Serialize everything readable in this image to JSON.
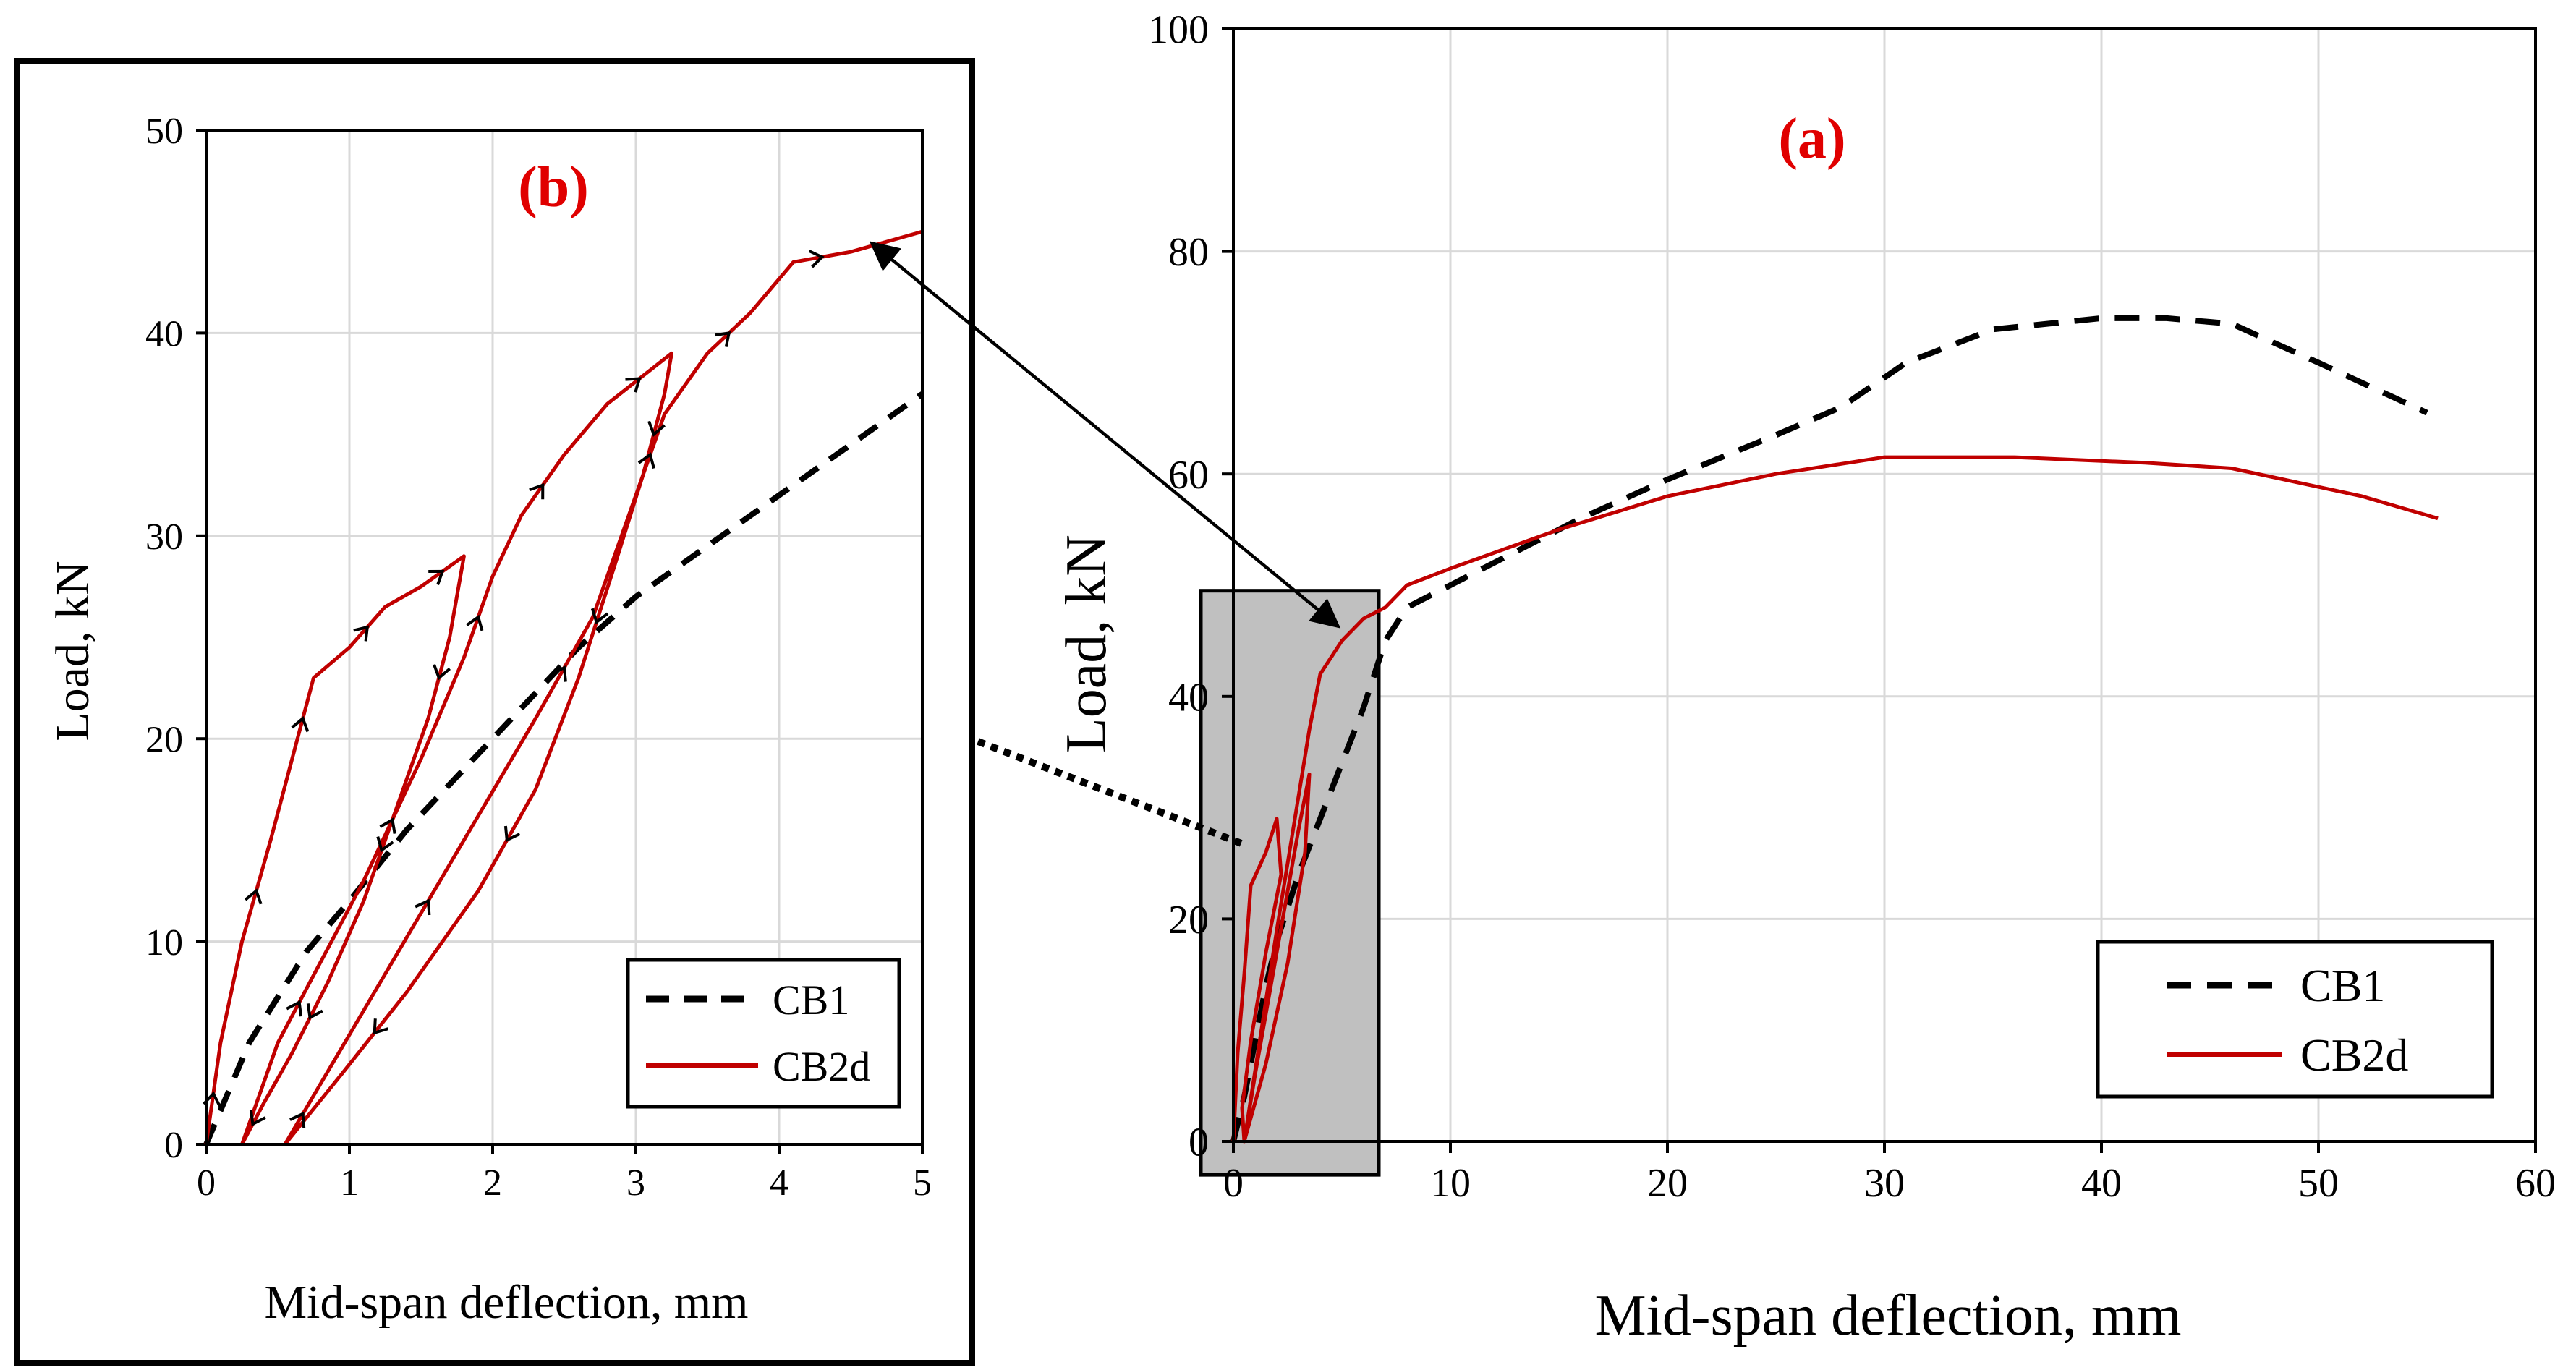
{
  "chart_data": [
    {
      "id": "a",
      "type": "line",
      "panel_label": "(a)",
      "title": "",
      "xlabel": "Mid-span deflection, mm",
      "ylabel": "Load,  kN",
      "xlim": [
        0,
        60
      ],
      "ylim": [
        0,
        100
      ],
      "xticks": [
        0,
        10,
        20,
        30,
        40,
        50,
        60
      ],
      "yticks": [
        0,
        20,
        40,
        60,
        80,
        100
      ],
      "grid": true,
      "legend_position": "bottom-right",
      "highlight_box": {
        "x": [
          -1.5,
          6.7
        ],
        "y": [
          -3,
          49.5
        ]
      },
      "series": [
        {
          "name": "CB1",
          "style": "dashed",
          "color": "#000000",
          "points": [
            [
              0,
              0
            ],
            [
              0.5,
              4
            ],
            [
              1,
              9
            ],
            [
              1.5,
              14
            ],
            [
              2,
              18
            ],
            [
              3,
              24
            ],
            [
              4,
              29
            ],
            [
              5,
              34
            ],
            [
              6,
              39
            ],
            [
              7,
              45
            ],
            [
              8,
              48
            ],
            [
              12,
              52
            ],
            [
              16,
              56
            ],
            [
              20,
              59.5
            ],
            [
              25,
              63.5
            ],
            [
              28,
              66
            ],
            [
              31,
              70
            ],
            [
              35,
              73
            ],
            [
              40,
              74
            ],
            [
              43,
              74
            ],
            [
              46,
              73.5
            ],
            [
              50,
              70
            ],
            [
              55,
              65.5
            ]
          ]
        },
        {
          "name": "CB2d",
          "style": "solid",
          "color": "#c00000",
          "points": [
            [
              0,
              0
            ],
            [
              0.2,
              8
            ],
            [
              0.5,
              15
            ],
            [
              0.8,
              23
            ],
            [
              1.5,
              26
            ],
            [
              2,
              29
            ],
            [
              2.2,
              24
            ],
            [
              1.5,
              17
            ],
            [
              0.8,
              9
            ],
            [
              0.4,
              3
            ],
            [
              0.5,
              0
            ],
            [
              1,
              6
            ],
            [
              2,
              17
            ],
            [
              3,
              28
            ],
            [
              3.5,
              33
            ],
            [
              3.3,
              26
            ],
            [
              2.5,
              16
            ],
            [
              1.5,
              7
            ],
            [
              0.5,
              0
            ],
            [
              2,
              19
            ],
            [
              3.5,
              37
            ],
            [
              4,
              42
            ],
            [
              5,
              45
            ],
            [
              6,
              47
            ],
            [
              7,
              48
            ],
            [
              8,
              50
            ],
            [
              10,
              51.5
            ],
            [
              15,
              55
            ],
            [
              20,
              58
            ],
            [
              25,
              60
            ],
            [
              30,
              61.5
            ],
            [
              36,
              61.5
            ],
            [
              42,
              61
            ],
            [
              46,
              60.5
            ],
            [
              52,
              58
            ],
            [
              55.5,
              56
            ]
          ]
        }
      ]
    },
    {
      "id": "b",
      "type": "line",
      "panel_label": "(b)",
      "title": "",
      "xlabel": "Mid-span deflection, mm",
      "ylabel": "Load,  kN",
      "xlim": [
        0,
        5
      ],
      "ylim": [
        0,
        50
      ],
      "xticks": [
        0,
        1,
        2,
        3,
        4,
        5
      ],
      "yticks": [
        0,
        10,
        20,
        30,
        40,
        50
      ],
      "grid": true,
      "legend_position": "bottom-right",
      "series": [
        {
          "name": "CB1",
          "style": "dashed",
          "color": "#000000",
          "points": [
            [
              0,
              0
            ],
            [
              0.3,
              5
            ],
            [
              0.7,
              9.5
            ],
            [
              1,
              12
            ],
            [
              1.4,
              15.5
            ],
            [
              1.8,
              18.5
            ],
            [
              2.2,
              21.5
            ],
            [
              2.6,
              24.5
            ],
            [
              3,
              27
            ],
            [
              3.6,
              30
            ],
            [
              4,
              32
            ],
            [
              4.5,
              34.5
            ],
            [
              5,
              37
            ]
          ]
        },
        {
          "name": "CB2d",
          "style": "solid",
          "color": "#c00000",
          "points": [
            [
              0,
              0
            ],
            [
              0.1,
              5
            ],
            [
              0.25,
              10
            ],
            [
              0.45,
              15
            ],
            [
              0.6,
              19
            ],
            [
              0.75,
              23
            ],
            [
              1,
              24.5
            ],
            [
              1.25,
              26.5
            ],
            [
              1.5,
              27.5
            ],
            [
              1.8,
              29
            ],
            [
              1.7,
              25
            ],
            [
              1.55,
              21
            ],
            [
              1.35,
              17
            ],
            [
              1.1,
              12
            ],
            [
              0.85,
              8
            ],
            [
              0.6,
              4.5
            ],
            [
              0.4,
              2
            ],
            [
              0.25,
              0
            ],
            [
              0.5,
              5
            ],
            [
              0.8,
              9
            ],
            [
              1.1,
              13
            ],
            [
              1.5,
              19
            ],
            [
              1.8,
              24
            ],
            [
              2,
              28
            ],
            [
              2.2,
              31
            ],
            [
              2.5,
              34
            ],
            [
              2.8,
              36.5
            ],
            [
              3.25,
              39
            ],
            [
              3.2,
              37
            ],
            [
              3.05,
              33
            ],
            [
              2.85,
              28.5
            ],
            [
              2.6,
              23
            ],
            [
              2.3,
              17.5
            ],
            [
              1.9,
              12.5
            ],
            [
              1.4,
              7.5
            ],
            [
              0.95,
              3.5
            ],
            [
              0.55,
              0
            ],
            [
              0.8,
              3
            ],
            [
              1.3,
              9
            ],
            [
              1.8,
              15
            ],
            [
              2.3,
              21
            ],
            [
              2.7,
              26
            ],
            [
              3,
              32
            ],
            [
              3.2,
              36
            ],
            [
              3.5,
              39
            ],
            [
              3.8,
              41
            ],
            [
              4.1,
              43.5
            ],
            [
              4.5,
              44
            ],
            [
              5,
              45
            ]
          ]
        }
      ]
    }
  ]
}
